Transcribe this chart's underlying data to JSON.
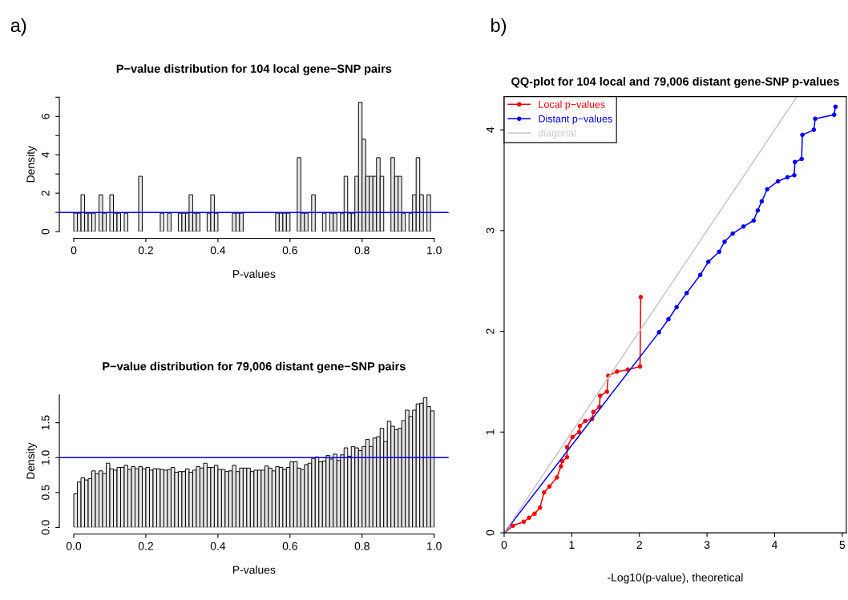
{
  "chart_data": [
    {
      "type": "histogram",
      "title": "P−value distribution for 104 local gene−SNP pairs",
      "xlabel": "P-values",
      "ylabel": "Density",
      "annotations": [
        "a)"
      ],
      "bins": [
        0,
        0.01,
        0.02,
        0.03,
        0.04,
        0.05,
        0.06,
        0.07,
        0.08,
        0.09,
        0.1,
        0.11,
        0.12,
        0.13,
        0.14,
        0.15,
        0.16,
        0.17,
        0.18,
        0.19,
        0.2,
        0.21,
        0.22,
        0.23,
        0.24,
        0.25,
        0.26,
        0.27,
        0.28,
        0.29,
        0.3,
        0.31,
        0.32,
        0.33,
        0.34,
        0.35,
        0.36,
        0.37,
        0.38,
        0.39,
        0.4,
        0.41,
        0.42,
        0.43,
        0.44,
        0.45,
        0.46,
        0.47,
        0.48,
        0.49,
        0.5,
        0.51,
        0.52,
        0.53,
        0.54,
        0.55,
        0.56,
        0.57,
        0.58,
        0.59,
        0.6,
        0.61,
        0.62,
        0.63,
        0.64,
        0.65,
        0.66,
        0.67,
        0.68,
        0.69,
        0.7,
        0.71,
        0.72,
        0.73,
        0.74,
        0.75,
        0.76,
        0.77,
        0.78,
        0.79,
        0.8,
        0.81,
        0.82,
        0.83,
        0.84,
        0.85,
        0.86,
        0.87,
        0.88,
        0.89,
        0.9,
        0.91,
        0.92,
        0.93,
        0.94,
        0.95,
        0.96,
        0.97,
        0.98,
        0.99,
        1.0
      ],
      "values": [
        0.96,
        0.96,
        1.92,
        0.96,
        0.96,
        0.96,
        0,
        1.92,
        0.96,
        0,
        1.92,
        0.96,
        0.96,
        0,
        0.96,
        0,
        0,
        0,
        2.88,
        0,
        0,
        0,
        0,
        0,
        0.96,
        0,
        0.96,
        0,
        0,
        0.96,
        0.96,
        0.96,
        1.92,
        0.96,
        0.96,
        0,
        0,
        0.96,
        1.92,
        0.96,
        0,
        0,
        0,
        0,
        0.96,
        0.96,
        0.96,
        0,
        0,
        0,
        0,
        0,
        0,
        0,
        0,
        0,
        0.96,
        0.96,
        0.96,
        0.96,
        0,
        0,
        3.85,
        0.96,
        0.96,
        0,
        1.92,
        0,
        0,
        0.96,
        0,
        0.96,
        0.96,
        0,
        0.96,
        2.88,
        0.96,
        0.96,
        2.88,
        6.73,
        4.81,
        2.88,
        2.88,
        2.88,
        3.85,
        2.88,
        0,
        0,
        3.85,
        2.88,
        2.88,
        0.96,
        0,
        0.96,
        1.92,
        3.85,
        1.92,
        0,
        1.92,
        0
      ],
      "color": "#e6e6e6",
      "xlim": [
        -0.04,
        1.04
      ],
      "xticks": [
        0,
        {
          "value": 0.2,
          "label": "0.2"
        },
        {
          "value": 0.4,
          "label": "0.4"
        },
        {
          "value": 0.6,
          "label": "0.6"
        },
        {
          "value": 0.8,
          "label": "0.8"
        },
        {
          "value": 1,
          "label": "1.0"
        }
      ],
      "ylim": [
        0,
        7
      ],
      "yticks": [
        0,
        {
          "value": 1,
          "label": null
        },
        2,
        {
          "value": 3,
          "label": null
        },
        4,
        {
          "value": 5,
          "label": null
        },
        6,
        {
          "value": 7,
          "label": null
        }
      ],
      "ref_lines": [
        {
          "axis": "y",
          "value": 1,
          "color": "#0000ff"
        }
      ]
    },
    {
      "type": "histogram",
      "title": "P−value distribution for 79,006 distant gene−SNP pairs",
      "xlabel": "P-values",
      "ylabel": "Density",
      "bins": [
        0,
        0.01,
        0.02,
        0.03,
        0.04,
        0.05,
        0.06,
        0.07,
        0.08,
        0.09,
        0.1,
        0.11,
        0.12,
        0.13,
        0.14,
        0.15,
        0.16,
        0.17,
        0.18,
        0.19,
        0.2,
        0.21,
        0.22,
        0.23,
        0.24,
        0.25,
        0.26,
        0.27,
        0.28,
        0.29,
        0.3,
        0.31,
        0.32,
        0.33,
        0.34,
        0.35,
        0.36,
        0.37,
        0.38,
        0.39,
        0.4,
        0.41,
        0.42,
        0.43,
        0.44,
        0.45,
        0.46,
        0.47,
        0.48,
        0.49,
        0.5,
        0.51,
        0.52,
        0.53,
        0.54,
        0.55,
        0.56,
        0.57,
        0.58,
        0.59,
        0.6,
        0.61,
        0.62,
        0.63,
        0.64,
        0.65,
        0.66,
        0.67,
        0.68,
        0.69,
        0.7,
        0.71,
        0.72,
        0.73,
        0.74,
        0.75,
        0.76,
        0.77,
        0.78,
        0.79,
        0.8,
        0.81,
        0.82,
        0.83,
        0.84,
        0.85,
        0.86,
        0.87,
        0.88,
        0.89,
        0.9,
        0.91,
        0.92,
        0.93,
        0.94,
        0.95,
        0.96,
        0.97,
        0.98,
        0.99,
        1.0
      ],
      "values": [
        0.48,
        0.65,
        0.71,
        0.68,
        0.7,
        0.81,
        0.77,
        0.81,
        0.77,
        0.92,
        0.84,
        0.82,
        0.86,
        0.86,
        0.89,
        0.83,
        0.87,
        0.84,
        0.87,
        0.84,
        0.86,
        0.82,
        0.84,
        0.84,
        0.83,
        0.82,
        0.83,
        0.86,
        0.79,
        0.8,
        0.8,
        0.84,
        0.79,
        0.82,
        0.87,
        0.85,
        0.92,
        0.86,
        0.86,
        0.89,
        0.83,
        0.83,
        0.8,
        0.81,
        0.89,
        0.8,
        0.85,
        0.85,
        0.85,
        0.8,
        0.82,
        0.82,
        0.82,
        0.88,
        0.85,
        0.81,
        0.87,
        0.86,
        0.83,
        0.86,
        0.94,
        0.94,
        0.85,
        0.83,
        0.9,
        0.92,
        0.99,
        1.01,
        0.94,
        0.95,
        1.03,
        0.98,
        1.05,
        0.96,
        1.04,
        1.14,
        1.02,
        1.16,
        1.14,
        1.1,
        1.16,
        1.26,
        1.16,
        1.28,
        1.3,
        1.42,
        1.23,
        1.52,
        1.45,
        1.4,
        1.42,
        1.53,
        1.68,
        1.59,
        1.68,
        1.77,
        1.78,
        1.86,
        1.73,
        1.67
      ],
      "color": "#e6e6e6",
      "xlim": [
        -0.04,
        1.04
      ],
      "xticks": [
        {
          "value": 0,
          "label": "0.0"
        },
        {
          "value": 0.2,
          "label": "0.2"
        },
        {
          "value": 0.4,
          "label": "0.4"
        },
        {
          "value": 0.6,
          "label": "0.6"
        },
        {
          "value": 0.8,
          "label": "0.8"
        },
        {
          "value": 1,
          "label": "1.0"
        }
      ],
      "ylim": [
        0,
        1.9
      ],
      "yticks": [
        {
          "value": 0,
          "label": "0.0"
        },
        0.5,
        {
          "value": 1,
          "label": "1.0"
        },
        1.5
      ],
      "ref_lines": [
        {
          "axis": "y",
          "value": 1,
          "color": "#0000ff"
        }
      ]
    },
    {
      "type": "line",
      "title": "QQ-plot for 104 local and 79,006 distant gene-SNP p-values",
      "xlabel": "-Log10(p-value), theoretical",
      "annotations": [
        "b)"
      ],
      "xlim": [
        0,
        5.06
      ],
      "xticks": [
        0,
        1,
        2,
        3,
        4,
        5
      ],
      "ylim": [
        0,
        4.33
      ],
      "yticks": [
        0,
        1,
        2,
        3,
        4
      ],
      "legend": "top left",
      "marker": "circle",
      "series": [
        {
          "name": "Local p−values",
          "color": "#ff0000",
          "x": [
            0,
            0.13,
            0.29,
            0.37,
            0.45,
            0.53,
            0.59,
            0.67,
            0.78,
            0.84,
            0.86,
            0.93,
            0.93,
            1.01,
            1.11,
            1.12,
            1.2,
            1.3,
            1.32,
            1.41,
            1.42,
            1.52,
            1.54,
            1.67,
            1.83,
            2.01,
            2.02
          ],
          "values": [
            0,
            0.07,
            0.11,
            0.15,
            0.19,
            0.25,
            0.4,
            0.46,
            0.55,
            0.66,
            0.71,
            0.75,
            0.85,
            0.95,
            1.0,
            1.06,
            1.11,
            1.13,
            1.2,
            1.25,
            1.36,
            1.4,
            1.56,
            1.6,
            1.62,
            1.65,
            2.34
          ]
        },
        {
          "name": "Distant p−values",
          "color": "#0000ff",
          "x": [
            0,
            2.29,
            2.43,
            2.55,
            2.7,
            2.9,
            3.02,
            3.18,
            3.26,
            3.38,
            3.54,
            3.69,
            3.75,
            3.81,
            3.89,
            4.05,
            4.19,
            4.29,
            4.3,
            4.4,
            4.41,
            4.58,
            4.6,
            4.88,
            4.9
          ],
          "values": [
            0,
            1.99,
            2.12,
            2.24,
            2.38,
            2.56,
            2.69,
            2.79,
            2.89,
            2.97,
            3.04,
            3.1,
            3.2,
            3.29,
            3.41,
            3.49,
            3.53,
            3.55,
            3.68,
            3.71,
            3.95,
            4.0,
            4.11,
            4.15,
            4.23
          ]
        },
        {
          "name": "diagonal",
          "color": "#c8c8c8",
          "marker": "none",
          "x": [
            0,
            4.33
          ],
          "values": [
            0,
            4.33
          ]
        }
      ]
    }
  ]
}
